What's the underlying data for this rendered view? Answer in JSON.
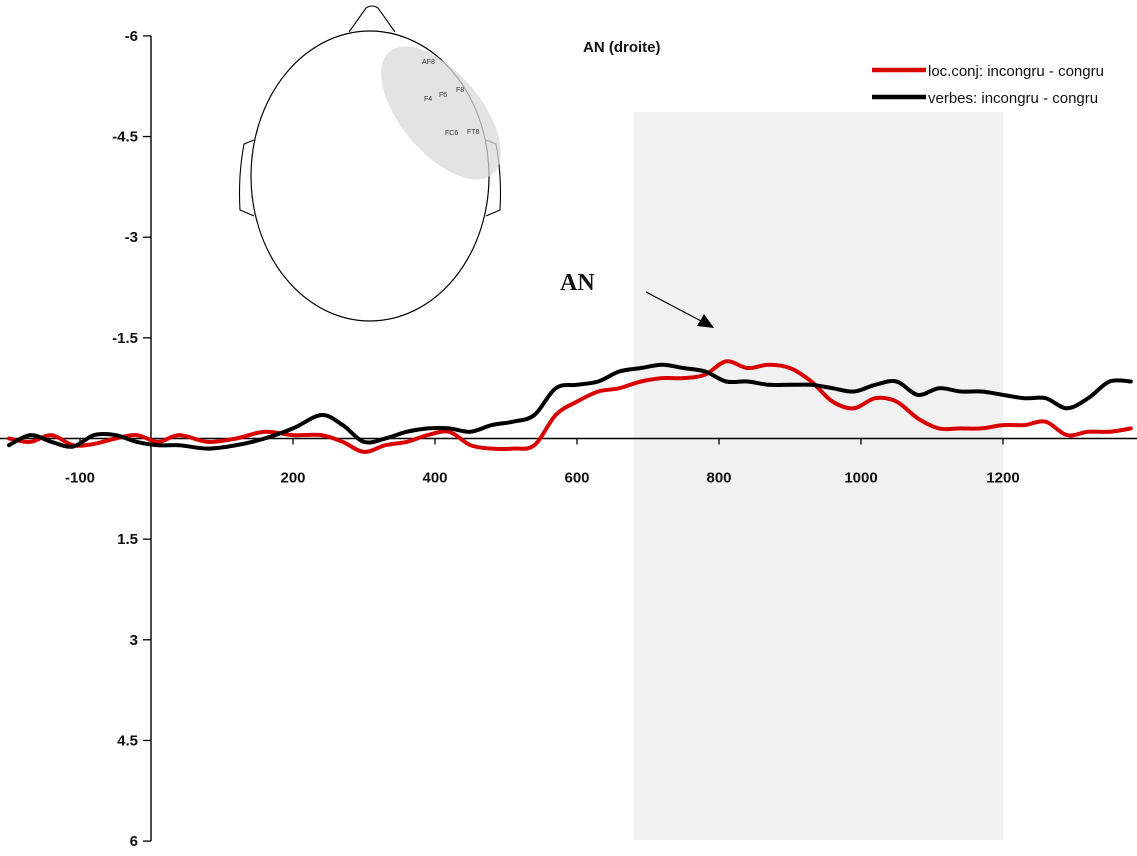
{
  "chart_data": {
    "type": "line",
    "title": "AN (droite)",
    "xlabel": "",
    "ylabel": "",
    "xlim": [
      -200,
      1380
    ],
    "ylim": [
      -6,
      6
    ],
    "y_inverted": true,
    "x_ticks": [
      -100,
      200,
      400,
      600,
      800,
      1000,
      1200
    ],
    "y_ticks": [
      -6,
      -4.5,
      -3,
      -1.5,
      1.5,
      3,
      4.5,
      6
    ],
    "y_tick_labels": [
      "-6",
      "-4.5",
      "-3",
      "-1.5",
      "1.5",
      "3",
      "4.5",
      "6"
    ],
    "shaded_window": [
      680,
      1200
    ],
    "legend_position": "top-right",
    "series": [
      {
        "name": "loc.conj: incongru - congru",
        "color": "#d90000",
        "x": [
          -200,
          -170,
          -140,
          -110,
          -80,
          -50,
          -20,
          10,
          40,
          80,
          120,
          160,
          200,
          240,
          270,
          300,
          330,
          360,
          390,
          420,
          450,
          480,
          510,
          540,
          570,
          600,
          630,
          660,
          690,
          720,
          750,
          780,
          810,
          840,
          870,
          900,
          930,
          960,
          990,
          1020,
          1050,
          1080,
          1110,
          1140,
          1170,
          1200,
          1230,
          1260,
          1290,
          1320,
          1350,
          1380
        ],
        "y": [
          0.0,
          0.05,
          -0.05,
          0.1,
          0.08,
          0.0,
          -0.05,
          0.05,
          -0.05,
          0.05,
          0.0,
          -0.1,
          -0.05,
          -0.05,
          0.05,
          0.2,
          0.1,
          0.05,
          -0.05,
          -0.1,
          0.1,
          0.15,
          0.15,
          0.1,
          -0.35,
          -0.55,
          -0.7,
          -0.75,
          -0.85,
          -0.9,
          -0.9,
          -0.95,
          -1.15,
          -1.05,
          -1.1,
          -1.05,
          -0.85,
          -0.55,
          -0.45,
          -0.6,
          -0.55,
          -0.3,
          -0.15,
          -0.15,
          -0.15,
          -0.2,
          -0.2,
          -0.25,
          -0.05,
          -0.1,
          -0.1,
          -0.15
        ]
      },
      {
        "name": "verbes: incongru - congru",
        "color": "#000000",
        "x": [
          -200,
          -170,
          -140,
          -110,
          -80,
          -50,
          -20,
          10,
          40,
          80,
          120,
          160,
          200,
          240,
          270,
          300,
          330,
          360,
          390,
          420,
          450,
          480,
          510,
          540,
          570,
          600,
          630,
          660,
          690,
          720,
          750,
          780,
          810,
          840,
          870,
          900,
          930,
          960,
          990,
          1020,
          1050,
          1080,
          1110,
          1140,
          1170,
          1200,
          1230,
          1260,
          1290,
          1320,
          1350,
          1380
        ],
        "y": [
          0.1,
          -0.05,
          0.05,
          0.12,
          -0.05,
          -0.05,
          0.05,
          0.1,
          0.1,
          0.15,
          0.1,
          0.0,
          -0.15,
          -0.35,
          -0.2,
          0.05,
          0.0,
          -0.1,
          -0.15,
          -0.15,
          -0.1,
          -0.2,
          -0.25,
          -0.35,
          -0.75,
          -0.8,
          -0.85,
          -1.0,
          -1.05,
          -1.1,
          -1.05,
          -1.0,
          -0.85,
          -0.85,
          -0.8,
          -0.8,
          -0.8,
          -0.75,
          -0.7,
          -0.8,
          -0.85,
          -0.65,
          -0.75,
          -0.7,
          -0.7,
          -0.65,
          -0.6,
          -0.6,
          -0.45,
          -0.6,
          -0.85,
          -0.85
        ]
      }
    ],
    "annotation": {
      "text": "AN",
      "x": 815,
      "y": -1.7
    },
    "head_inset": {
      "electrodes": [
        "AF8",
        "F8",
        "F6",
        "F4",
        "FC6",
        "FT8"
      ]
    }
  }
}
